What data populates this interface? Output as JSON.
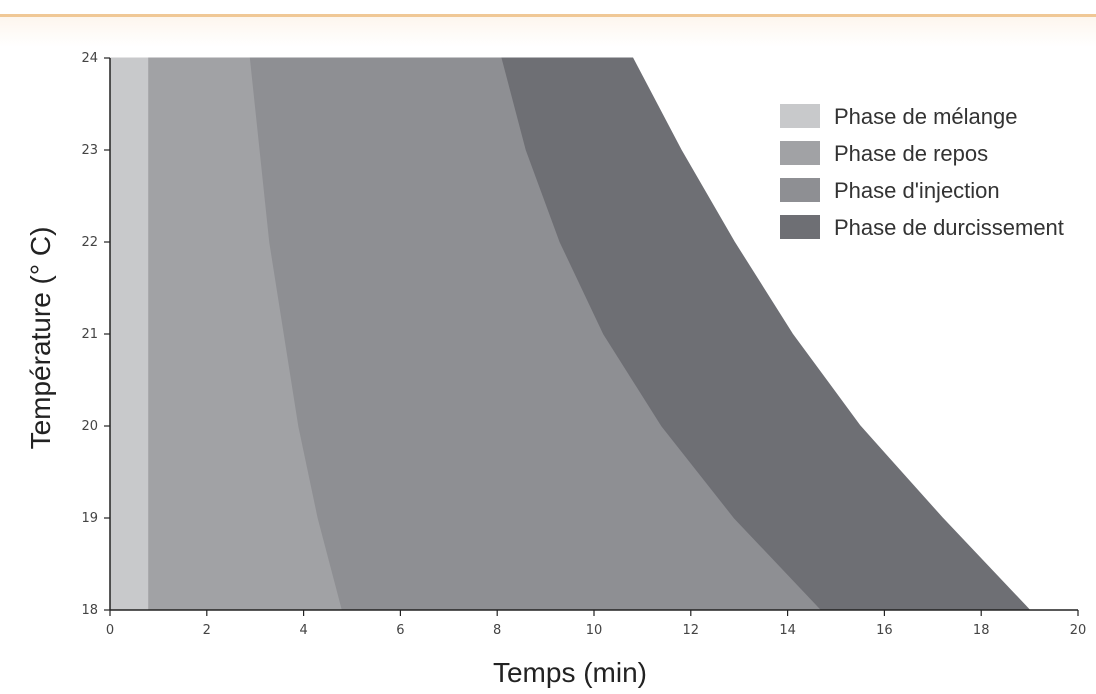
{
  "chart_data": {
    "type": "area",
    "title": "",
    "xlabel": "Temps (min)",
    "ylabel": "Température (° C)",
    "xlim": [
      0,
      20
    ],
    "ylim": [
      18,
      24
    ],
    "xticks": [
      0,
      2,
      4,
      6,
      8,
      10,
      12,
      14,
      16,
      18,
      20
    ],
    "yticks": [
      18,
      19,
      20,
      21,
      22,
      23,
      24
    ],
    "legend_position": "top-right",
    "grid": false,
    "series": [
      {
        "name": "Phase de mélange",
        "color": "#c8c9cb",
        "boundary": [
          [
            24,
            0.8
          ],
          [
            18,
            0.8
          ]
        ]
      },
      {
        "name": "Phase de repos",
        "color": "#a1a2a5",
        "boundary": [
          [
            24,
            2.9
          ],
          [
            23,
            3.1
          ],
          [
            22,
            3.3
          ],
          [
            21,
            3.6
          ],
          [
            20,
            3.9
          ],
          [
            19,
            4.3
          ],
          [
            18,
            4.8
          ]
        ]
      },
      {
        "name": "Phase d'injection",
        "color": "#8e8f93",
        "boundary": [
          [
            24,
            8.1
          ],
          [
            23,
            8.6
          ],
          [
            22,
            9.3
          ],
          [
            21,
            10.2
          ],
          [
            20,
            11.4
          ],
          [
            19,
            12.9
          ],
          [
            18,
            14.7
          ]
        ]
      },
      {
        "name": "Phase de durcissement",
        "color": "#6e6f74",
        "boundary": [
          [
            24,
            10.8
          ],
          [
            23,
            11.8
          ],
          [
            22,
            12.9
          ],
          [
            21,
            14.1
          ],
          [
            20,
            15.5
          ],
          [
            19,
            17.2
          ],
          [
            18,
            19.0
          ]
        ]
      }
    ]
  }
}
